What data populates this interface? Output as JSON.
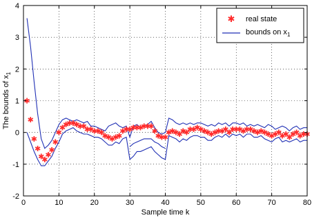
{
  "chart_data": {
    "type": "line",
    "title": "",
    "xlabel": "Sample time k",
    "ylabel": "The bounds of x",
    "ylabel_subscript": "1",
    "xlim": [
      0,
      80
    ],
    "ylim": [
      -2,
      4
    ],
    "xticks": [
      0,
      10,
      20,
      30,
      40,
      50,
      60,
      70,
      80
    ],
    "yticks": [
      -2,
      -1,
      0,
      1,
      2,
      3,
      4
    ],
    "grid": true,
    "legend_position": "top-right",
    "colors": {
      "real_state": "#ff2a2a",
      "bounds": "#1f2fb4"
    },
    "legend": {
      "real_state_label": "real state",
      "bounds_label": "bounds on x",
      "bounds_subscript": "1"
    },
    "series": [
      {
        "name": "real state",
        "style": "star-markers",
        "x": [
          1,
          2,
          3,
          4,
          5,
          6,
          7,
          8,
          9,
          10,
          11,
          12,
          13,
          14,
          15,
          16,
          17,
          18,
          19,
          20,
          21,
          22,
          23,
          24,
          25,
          26,
          27,
          28,
          29,
          30,
          31,
          32,
          33,
          34,
          35,
          36,
          37,
          38,
          39,
          40,
          41,
          42,
          43,
          44,
          45,
          46,
          47,
          48,
          49,
          50,
          51,
          52,
          53,
          54,
          55,
          56,
          57,
          58,
          59,
          60,
          61,
          62,
          63,
          64,
          65,
          66,
          67,
          68,
          69,
          70,
          71,
          72,
          73,
          74,
          75,
          76,
          77,
          78,
          79,
          80
        ],
        "y": [
          1.0,
          0.4,
          -0.2,
          -0.5,
          -0.75,
          -0.85,
          -0.7,
          -0.55,
          -0.3,
          0.0,
          0.15,
          0.25,
          0.3,
          0.3,
          0.25,
          0.2,
          0.2,
          0.1,
          0.1,
          0.05,
          0.05,
          0.0,
          -0.1,
          -0.15,
          -0.2,
          -0.15,
          -0.1,
          0.05,
          0.1,
          0.1,
          0.15,
          0.15,
          0.15,
          0.2,
          0.2,
          0.2,
          0.05,
          -0.1,
          -0.15,
          -0.15,
          0.0,
          0.05,
          0.0,
          -0.05,
          0.05,
          0.0,
          0.1,
          0.1,
          0.15,
          0.1,
          0.05,
          0.0,
          -0.05,
          0.0,
          0.05,
          0.05,
          0.1,
          0.0,
          0.1,
          0.1,
          0.1,
          0.05,
          0.1,
          0.1,
          0.05,
          0.0,
          0.05,
          0.0,
          -0.05,
          -0.1,
          -0.05,
          0.0,
          -0.1,
          -0.05,
          -0.15,
          -0.05,
          0.0,
          -0.1,
          -0.05,
          -0.05
        ]
      },
      {
        "name": "bounds on x1 (upper)",
        "style": "line",
        "x": [
          1,
          2,
          3,
          4,
          5,
          6,
          7,
          8,
          9,
          10,
          11,
          12,
          13,
          14,
          15,
          16,
          17,
          18,
          19,
          20,
          21,
          22,
          23,
          24,
          25,
          26,
          27,
          28,
          29,
          30,
          31,
          32,
          33,
          34,
          35,
          36,
          37,
          38,
          39,
          40,
          41,
          42,
          43,
          44,
          45,
          46,
          47,
          48,
          49,
          50,
          51,
          52,
          53,
          54,
          55,
          56,
          57,
          58,
          59,
          60,
          61,
          62,
          63,
          64,
          65,
          66,
          67,
          68,
          69,
          70,
          71,
          72,
          73,
          74,
          75,
          76,
          77,
          78,
          79,
          80
        ],
        "y": [
          3.6,
          2.7,
          1.6,
          0.6,
          -0.2,
          -0.5,
          -0.4,
          -0.25,
          0.0,
          0.25,
          0.4,
          0.45,
          0.4,
          0.35,
          0.4,
          0.35,
          0.3,
          0.35,
          0.2,
          0.2,
          0.15,
          0.1,
          0.05,
          0.2,
          0.25,
          0.3,
          0.2,
          0.15,
          0.2,
          -0.15,
          0.2,
          0.25,
          0.15,
          0.2,
          0.25,
          0.35,
          0.15,
          0.0,
          -0.05,
          0.0,
          0.45,
          0.4,
          0.3,
          0.25,
          0.3,
          0.25,
          0.3,
          0.25,
          0.3,
          0.3,
          0.25,
          0.2,
          0.25,
          0.2,
          0.3,
          0.25,
          0.3,
          0.2,
          0.3,
          0.3,
          0.25,
          0.3,
          0.2,
          0.25,
          0.2,
          0.25,
          0.2,
          0.15,
          0.25,
          0.2,
          0.1,
          0.15,
          0.2,
          0.15,
          0.05,
          0.15,
          0.2,
          0.1,
          0.15,
          0.15
        ]
      },
      {
        "name": "bounds on x1 (lower)",
        "style": "line",
        "x": [
          1,
          2,
          3,
          4,
          5,
          6,
          7,
          8,
          9,
          10,
          11,
          12,
          13,
          14,
          15,
          16,
          17,
          18,
          19,
          20,
          21,
          22,
          23,
          24,
          25,
          26,
          27,
          28,
          29,
          30,
          31,
          32,
          33,
          34,
          35,
          36,
          37,
          38,
          39,
          40,
          41,
          42,
          43,
          44,
          45,
          46,
          47,
          48,
          49,
          50,
          51,
          52,
          53,
          54,
          55,
          56,
          57,
          58,
          59,
          60,
          61,
          62,
          63,
          64,
          65,
          66,
          67,
          68,
          69,
          70,
          71,
          72,
          73,
          74,
          75,
          76,
          77,
          78,
          79,
          80
        ],
        "y": [
          0.0,
          -0.3,
          -0.6,
          -0.85,
          -1.05,
          -1.05,
          -0.9,
          -0.75,
          -0.5,
          -0.3,
          -0.05,
          0.05,
          0.1,
          0.15,
          0.05,
          0.0,
          -0.05,
          -0.05,
          -0.1,
          -0.15,
          -0.15,
          -0.2,
          -0.3,
          -0.4,
          -0.4,
          -0.3,
          -0.35,
          -0.2,
          -0.15,
          -0.85,
          -0.75,
          -0.6,
          -0.6,
          -0.55,
          -0.5,
          -0.45,
          -0.6,
          -0.7,
          -0.8,
          -0.85,
          -0.1,
          -0.15,
          -0.2,
          -0.3,
          -0.2,
          -0.25,
          -0.15,
          -0.1,
          -0.1,
          -0.15,
          -0.15,
          -0.25,
          -0.25,
          -0.15,
          -0.1,
          -0.15,
          -0.05,
          -0.15,
          -0.05,
          -0.1,
          -0.05,
          -0.15,
          -0.05,
          -0.05,
          -0.15,
          -0.15,
          -0.1,
          -0.2,
          -0.25,
          -0.3,
          -0.2,
          -0.15,
          -0.3,
          -0.25,
          -0.3,
          -0.25,
          -0.2,
          -0.3,
          -0.25,
          -0.25
        ]
      },
      {
        "name": "bounds on x1 (inner)",
        "style": "line",
        "x": [
          30,
          31,
          32,
          33,
          34,
          35,
          36,
          37,
          38,
          39,
          40
        ],
        "y": [
          -0.45,
          -0.35,
          -0.3,
          -0.25,
          -0.2,
          -0.2,
          -0.2,
          -0.3,
          -0.35,
          -0.45,
          -0.5
        ]
      }
    ]
  }
}
